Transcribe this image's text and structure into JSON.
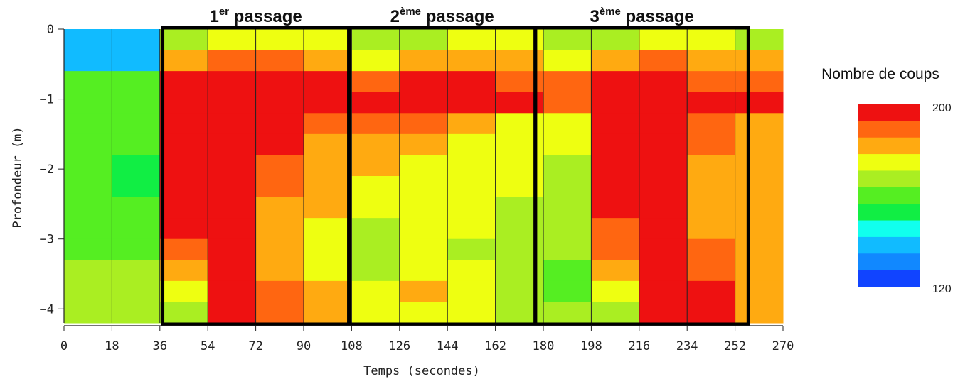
{
  "chart_data": {
    "type": "heatmap",
    "xlabel": "Temps (secondes)",
    "ylabel": "Profondeur (m)",
    "xlim": [
      0,
      270
    ],
    "ylim": [
      -4.2,
      0
    ],
    "x_ticks": [
      "0",
      "18",
      "36",
      "54",
      "72",
      "90",
      "108",
      "126",
      "144",
      "162",
      "180",
      "198",
      "216",
      "234",
      "252",
      "270"
    ],
    "y_ticks": [
      {
        "value": 0,
        "label": "0"
      },
      {
        "value": -1,
        "label": "−1"
      },
      {
        "value": -2,
        "label": "−2"
      },
      {
        "value": -3,
        "label": "−3"
      },
      {
        "value": -4,
        "label": "−4"
      }
    ],
    "time_columns": [
      0,
      18,
      36,
      54,
      72,
      90,
      108,
      126,
      144,
      162,
      180,
      198,
      216,
      234,
      252,
      270
    ],
    "depth_rows": [
      0,
      -0.3,
      -0.6,
      -0.9,
      -1.2,
      -1.5,
      -1.8,
      -2.1,
      -2.4,
      -2.7,
      -3.0,
      -3.3,
      -3.6,
      -3.9,
      -4.2
    ],
    "counts": [
      [
        136,
        136,
        168,
        176,
        178,
        176,
        172,
        170,
        174,
        176,
        168,
        170,
        176,
        176,
        168,
        176
      ],
      [
        140,
        140,
        188,
        194,
        192,
        188,
        180,
        184,
        188,
        186,
        180,
        188,
        190,
        188,
        182,
        184
      ],
      [
        160,
        160,
        200,
        200,
        200,
        200,
        192,
        200,
        200,
        192,
        190,
        200,
        200,
        192,
        192,
        188
      ],
      [
        164,
        164,
        200,
        200,
        200,
        200,
        200,
        200,
        200,
        200,
        190,
        200,
        200,
        200,
        198,
        188
      ],
      [
        164,
        162,
        200,
        200,
        200,
        194,
        190,
        190,
        186,
        180,
        180,
        200,
        200,
        194,
        184,
        180
      ],
      [
        160,
        158,
        200,
        200,
        198,
        188,
        184,
        184,
        180,
        178,
        176,
        200,
        200,
        190,
        184,
        176
      ],
      [
        158,
        156,
        200,
        200,
        194,
        186,
        182,
        180,
        178,
        176,
        172,
        200,
        200,
        188,
        182,
        176
      ],
      [
        158,
        156,
        200,
        200,
        190,
        184,
        180,
        180,
        176,
        174,
        170,
        200,
        200,
        186,
        182,
        176
      ],
      [
        160,
        158,
        200,
        200,
        188,
        182,
        176,
        180,
        176,
        172,
        168,
        200,
        200,
        188,
        182,
        176
      ],
      [
        162,
        162,
        200,
        200,
        188,
        178,
        172,
        178,
        174,
        168,
        166,
        196,
        200,
        188,
        182,
        176
      ],
      [
        164,
        164,
        196,
        200,
        186,
        176,
        170,
        176,
        172,
        168,
        166,
        192,
        200,
        192,
        182,
        180
      ],
      [
        166,
        166,
        184,
        200,
        186,
        178,
        172,
        180,
        174,
        168,
        164,
        186,
        200,
        194,
        184,
        176
      ],
      [
        166,
        168,
        176,
        200,
        192,
        184,
        174,
        184,
        176,
        170,
        164,
        176,
        200,
        198,
        188,
        176
      ],
      [
        168,
        168,
        172,
        200,
        196,
        186,
        176,
        180,
        176,
        170,
        166,
        168,
        200,
        200,
        186,
        176
      ]
    ],
    "passes": [
      {
        "label": "1",
        "sup": "er",
        "rest": " passage",
        "x_start": 37,
        "x_end": 107
      },
      {
        "label": "2",
        "sup": "ème",
        "rest": " passage",
        "x_start": 107,
        "x_end": 177
      },
      {
        "label": "3",
        "sup": "ème",
        "rest": " passage",
        "x_start": 177,
        "x_end": 257
      }
    ],
    "legend": {
      "title": "Nombre de coups",
      "max_label": "200",
      "min_label": "120",
      "min": 120,
      "max": 200,
      "colors": [
        "#ee1111",
        "#ff6611",
        "#ffaa11",
        "#eeff11",
        "#aaee22",
        "#55ee22",
        "#11ee44",
        "#11ffee",
        "#11bbff",
        "#1188ff",
        "#1144ff"
      ]
    }
  }
}
